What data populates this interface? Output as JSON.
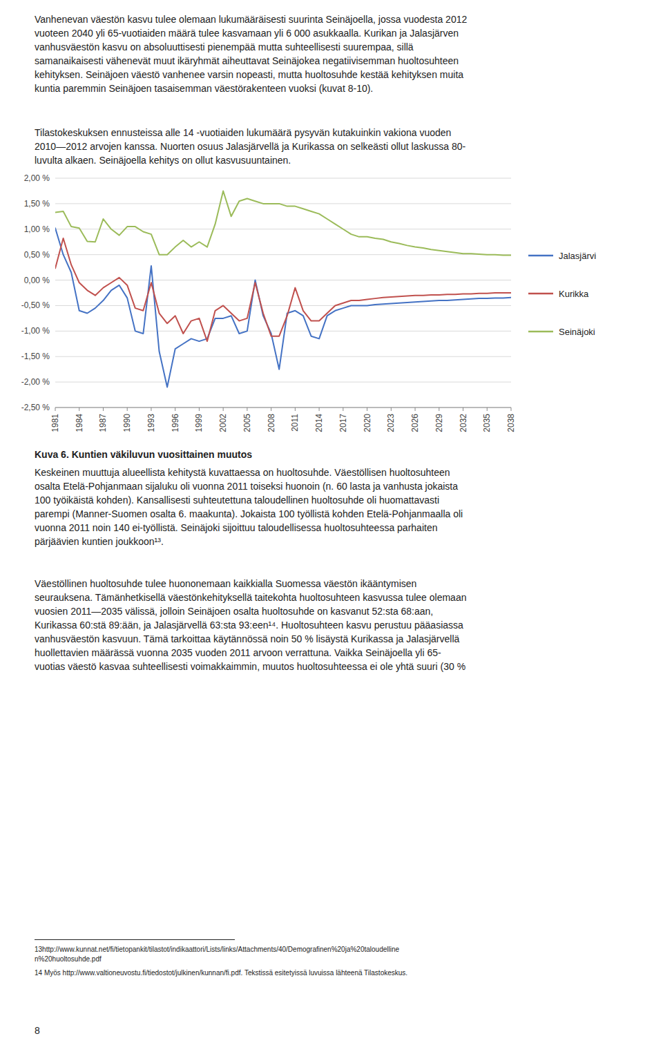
{
  "chart_data": {
    "type": "line",
    "title": "Kuva 6. Kuntien väkiluvun vuosittainen muutos",
    "x": [
      1981,
      1982,
      1983,
      1984,
      1985,
      1986,
      1987,
      1988,
      1989,
      1990,
      1991,
      1992,
      1993,
      1994,
      1995,
      1996,
      1997,
      1998,
      1999,
      2000,
      2001,
      2002,
      2003,
      2004,
      2005,
      2006,
      2007,
      2008,
      2009,
      2010,
      2011,
      2012,
      2013,
      2014,
      2015,
      2016,
      2017,
      2018,
      2019,
      2020,
      2021,
      2022,
      2023,
      2024,
      2025,
      2026,
      2027,
      2028,
      2029,
      2030,
      2031,
      2032,
      2033,
      2034,
      2035,
      2036,
      2037,
      2038
    ],
    "series": [
      {
        "name": "Jalasjärvi",
        "color": "#4472C4",
        "values": [
          1.02,
          0.5,
          0.15,
          -0.6,
          -0.65,
          -0.55,
          -0.4,
          -0.2,
          -0.1,
          -0.35,
          -1.0,
          -1.05,
          0.28,
          -1.4,
          -2.1,
          -1.35,
          -1.25,
          -1.15,
          -1.2,
          -1.15,
          -0.75,
          -0.75,
          -0.7,
          -1.05,
          -1.0,
          0.0,
          -0.7,
          -1.05,
          -1.75,
          -0.65,
          -0.6,
          -0.7,
          -1.1,
          -1.15,
          -0.7,
          -0.6,
          -0.55,
          -0.5,
          -0.5,
          -0.5,
          -0.48,
          -0.47,
          -0.46,
          -0.45,
          -0.44,
          -0.43,
          -0.42,
          -0.41,
          -0.4,
          -0.4,
          -0.39,
          -0.38,
          -0.37,
          -0.36,
          -0.36,
          -0.35,
          -0.35,
          -0.34
        ]
      },
      {
        "name": "Kurikka",
        "color": "#C0504D",
        "values": [
          0.23,
          0.82,
          0.3,
          -0.05,
          -0.2,
          -0.3,
          -0.15,
          -0.05,
          0.05,
          -0.1,
          -0.55,
          -0.6,
          -0.05,
          -0.65,
          -0.85,
          -0.7,
          -1.05,
          -0.8,
          -0.75,
          -1.2,
          -0.6,
          -0.5,
          -0.65,
          -0.8,
          -0.75,
          -0.05,
          -0.65,
          -1.1,
          -1.1,
          -0.7,
          -0.15,
          -0.6,
          -0.8,
          -0.8,
          -0.65,
          -0.5,
          -0.45,
          -0.4,
          -0.4,
          -0.38,
          -0.36,
          -0.34,
          -0.33,
          -0.32,
          -0.31,
          -0.3,
          -0.3,
          -0.29,
          -0.29,
          -0.28,
          -0.28,
          -0.27,
          -0.27,
          -0.26,
          -0.26,
          -0.25,
          -0.25,
          -0.25
        ]
      },
      {
        "name": "Seinäjoki",
        "color": "#9BBB59",
        "values": [
          1.33,
          1.35,
          1.05,
          1.02,
          0.76,
          0.75,
          1.2,
          1.0,
          0.88,
          1.05,
          1.05,
          0.95,
          0.9,
          0.5,
          0.5,
          0.65,
          0.78,
          0.65,
          0.75,
          0.65,
          1.1,
          1.75,
          1.25,
          1.55,
          1.6,
          1.55,
          1.5,
          1.5,
          1.5,
          1.45,
          1.45,
          1.4,
          1.35,
          1.3,
          1.2,
          1.1,
          1.0,
          0.9,
          0.85,
          0.85,
          0.82,
          0.8,
          0.75,
          0.72,
          0.68,
          0.65,
          0.63,
          0.6,
          0.58,
          0.56,
          0.54,
          0.52,
          0.52,
          0.51,
          0.5,
          0.5,
          0.49,
          0.49
        ]
      }
    ],
    "xlim": [
      1981,
      2038
    ],
    "xticks": [
      1981,
      1984,
      1987,
      1990,
      1993,
      1996,
      1999,
      2002,
      2005,
      2008,
      2011,
      2014,
      2017,
      2020,
      2023,
      2026,
      2029,
      2032,
      2035,
      2038
    ],
    "ylim": [
      -2.5,
      2.0
    ],
    "yticks": [
      {
        "value": -2.5,
        "label": "-2,50 %"
      },
      {
        "value": -2.0,
        "label": "-2,00 %"
      },
      {
        "value": -1.5,
        "label": "-1,50 %"
      },
      {
        "value": -1.0,
        "label": "-1,00 %"
      },
      {
        "value": -0.5,
        "label": "-0,50 %"
      },
      {
        "value": 0.0,
        "label": "0,00 %"
      },
      {
        "value": 0.5,
        "label": "0,50 %"
      },
      {
        "value": 1.0,
        "label": "1,00 %"
      },
      {
        "value": 1.5,
        "label": "1,50 %"
      },
      {
        "value": 2.0,
        "label": "2,00 %"
      }
    ],
    "grid": true,
    "legend": "right"
  },
  "page": {
    "paragraphs_before": [
      "Vanhenevan väestön kasvu tulee olemaan lukumääräisesti suurinta Seinäjoella, jossa vuodesta 2012\nvuoteen 2040 yli 65-vuotiaiden määrä tulee kasvamaan yli 6 000 asukkaalla. Kurikan ja Jalasjärven\nvanhusväestön kasvu on absoluuttisesti pienempää mutta suhteellisesti suurempaa, sillä\nsamanaikaisesti vähenevät muut ikäryhmät aiheuttavat Seinäjokea negatiivisemman huoltosuhteen\nkehityksen. Seinäjoen väestö vanhenee varsin nopeasti, mutta huoltosuhde kestää kehityksen muita\nkuntia paremmin Seinäjoen tasaisemman väestörakenteen vuoksi (kuvat 8-10).",
      "Tilastokeskuksen ennusteissa alle 14 -vuotiaiden lukumäärä pysyvän kutakuinkin vakiona vuoden\n2010—2012 arvojen kanssa. Nuorten osuus Jalasjärvellä ja Kurikassa on selkeästi ollut laskussa 80-\nluvulta alkaen. Seinäjoella kehitys on ollut kasvusuuntainen."
    ],
    "paragraphs_after": [
      "Keskeinen muuttuja alueellista kehitystä kuvattaessa on huoltosuhde. Väestöllisen huoltosuhteen\nosalta Etelä-Pohjanmaan sijaluku oli vuonna 2011 toiseksi huonoin (n. 60 lasta ja vanhusta jokaista\n100 työikäistä kohden). Kansallisesti suhteutettuna taloudellinen huoltosuhde oli huomattavasti\nparempi (Manner-Suomen osalta 6. maakunta). Jokaista 100 työllistä kohden Etelä-Pohjanmaalla oli\nvuonna 2011 noin 140 ei-työllistä. Seinäjoki sijoittuu taloudellisessa huoltosuhteessa parhaiten\npärjäävien kuntien joukkoon¹³.",
      "Väestöllinen huoltosuhde tulee huononemaan kaikkialla Suomessa väestön ikääntymisen\nseurauksena. Tämänhetkisellä väestönkehityksellä taitekohta huoltosuhteen kasvussa tulee olemaan\nvuosien 2011—2035 välissä, jolloin Seinäjoen osalta huoltosuhde on kasvanut 52:sta 68:aan,\nKurikassa 60:stä 89:ään, ja Jalasjärvellä 63:sta 93:een¹⁴. Huoltosuhteen kasvu perustuu pääasiassa\nvanhusväestön kasvuun. Tämä tarkoittaa käytännössä noin 50 % lisäystä Kurikassa ja Jalasjärvellä\nhuollettavien määrässä vuonna 2035 vuoden 2011 arvoon verrattuna. Vaikka Seinäjoella yli 65-\nvuotias väestö kasvaa suhteellisesti voimakkaimmin, muutos huoltosuhteessa ei ole yhtä suuri (30 %"
    ],
    "footnotes": [
      "13http://www.kunnat.net/fi/tietopankit/tilastot/indikaattori/Lists/links/Attachments/40/Demografinen%20ja%20taloudelline\nn%20huoltosuhde.pdf",
      "14 Myös http://www.valtioneuvostu.fi/tiedostot/julkinen/kunnan/fi.pdf. Tekstissä esitetyissä luvuissa lähteenä Tilastokeskus."
    ],
    "page_number": "8"
  }
}
